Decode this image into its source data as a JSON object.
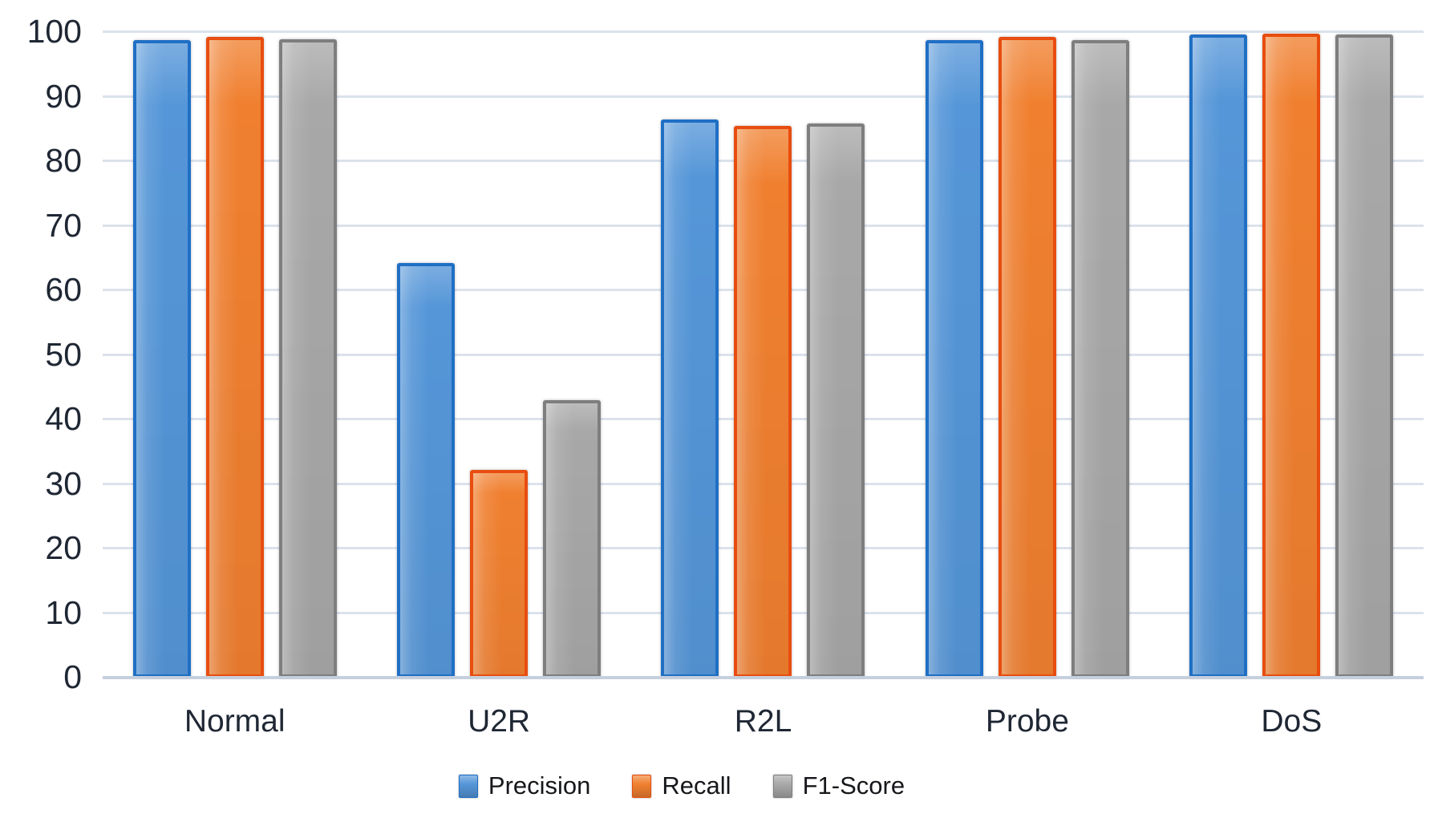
{
  "chart_data": {
    "type": "bar",
    "title": "",
    "xlabel": "",
    "ylabel": "",
    "categories": [
      "Normal",
      "U2R",
      "R2L",
      "Probe",
      "DoS"
    ],
    "series": [
      {
        "name": "Precision",
        "color": "#5596d8",
        "border_color": "#1f6fc5",
        "values": [
          98.8,
          64.2,
          86.4,
          98.8,
          99.6
        ]
      },
      {
        "name": "Recall",
        "color": "#f08030",
        "border_color": "#e84d0f",
        "values": [
          99.3,
          32.2,
          85.5,
          99.2,
          99.7
        ]
      },
      {
        "name": "F1-Score",
        "color": "#a8a8a8",
        "border_color": "#7e7e7e",
        "values": [
          98.9,
          43.0,
          85.9,
          98.8,
          99.6
        ]
      }
    ],
    "ylim": [
      0,
      100
    ],
    "ytick_step": 10,
    "ytick_labels": [
      "0",
      "10",
      "20",
      "30",
      "40",
      "50",
      "60",
      "70",
      "80",
      "90",
      "100"
    ],
    "grid": true,
    "legend_position": "bottom",
    "legend_labels": [
      "Precision",
      "Recall",
      "F1-Score"
    ]
  },
  "colors": {
    "background": "#ffffff",
    "gridline": "#dbe2ec",
    "baseline": "#c6cfdc",
    "axis_text": "#1f2734",
    "legend_text": "#15171a"
  }
}
